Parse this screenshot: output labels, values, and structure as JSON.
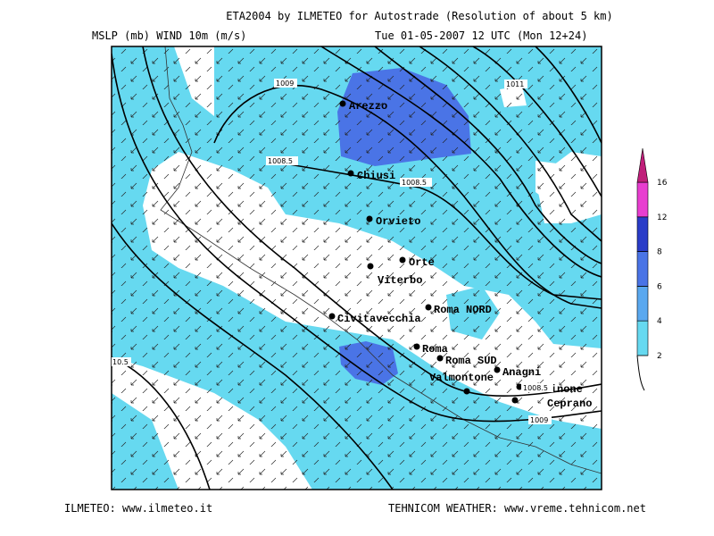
{
  "header": {
    "title": "ETA2004 by ILMETEO for Autostrade (Resolution of about 5 km)",
    "fields": "MSLP (mb)  WIND 10m (m/s)",
    "valid_time": "Tue 01-05-2007 12 UTC (Mon 12+24)"
  },
  "cities": [
    "Arezzo",
    "Chiusi",
    "Orvieto",
    "Orte",
    "Viterbo",
    "Roma NORD",
    "Civitavecchia",
    "Roma",
    "Roma SUD",
    "Valmontone",
    "Anagni",
    "Frosinone",
    "Ceprano"
  ],
  "isobar_labels": [
    "1009",
    "1011",
    "1008.5",
    "1008.5",
    "10.5",
    "1008.5",
    "1009"
  ],
  "legend": {
    "levels": [
      2,
      4,
      6,
      8,
      12,
      16
    ],
    "colors": [
      "#66d9f0",
      "#5aa8ef",
      "#4a74e6",
      "#2a3cc8",
      "#e83ed0",
      "#c01f7a"
    ]
  },
  "footer": {
    "left": "ILMETEO: www.ilmeteo.it",
    "right": "TEHNICOM WEATHER: www.vreme.tehnicom.net"
  }
}
